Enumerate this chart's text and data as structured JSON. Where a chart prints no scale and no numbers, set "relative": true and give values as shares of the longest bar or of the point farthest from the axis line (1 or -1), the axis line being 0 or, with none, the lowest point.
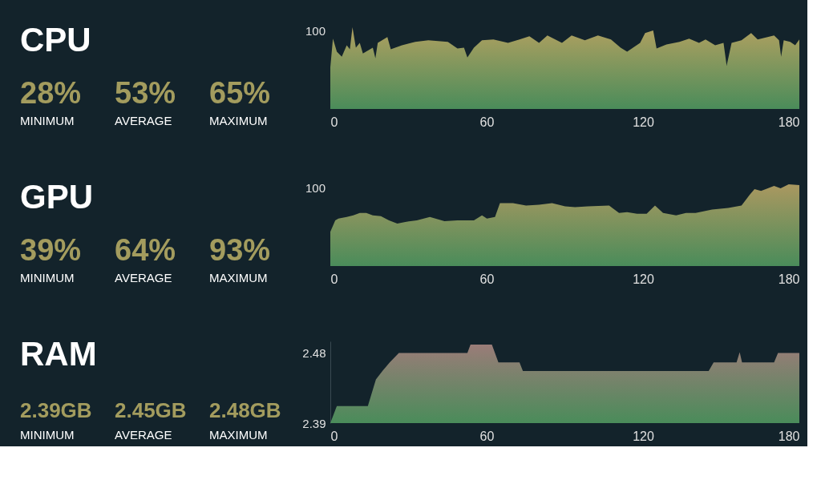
{
  "chart_data": [
    {
      "type": "area",
      "relative": true,
      "annotations": [
        "CPU",
        "28%",
        "MINIMUM",
        "53%",
        "AVERAGE",
        "65%",
        "MAXIMUM",
        "100"
      ],
      "x": [
        0,
        1.0,
        2.5,
        4.4,
        6.3,
        7.5,
        8.5,
        9.8,
        11.3,
        12.5,
        16.3,
        17.3,
        18.2,
        21.9,
        23.2,
        27.5,
        32.6,
        37.6,
        45.1,
        48.8,
        51.3,
        52.6,
        55.1,
        58.2,
        62.6,
        68.2,
        72.6,
        76.4,
        80.1,
        83.3,
        88.9,
        92.6,
        97.7,
        102.7,
        107.7,
        111.4,
        113.9,
        118.9,
        120.8,
        123.9,
        125.2,
        129.0,
        134.0,
        137.7,
        141.5,
        144.0,
        147.7,
        150.9,
        152.1,
        154.0,
        157.8,
        161.5,
        164.0,
        167.8,
        170.3,
        172.2,
        173.0,
        174.0,
        176.5,
        178.4,
        180
      ],
      "series": [
        {
          "color": "#b0a060",
          "values": [
            0.51,
            0.86,
            0.7,
            0.64,
            0.78,
            0.73,
            1,
            0.75,
            0.81,
            0.68,
            0.75,
            0.62,
            0.81,
            0.88,
            0.73,
            0.78,
            0.82,
            0.84,
            0.82,
            0.74,
            0.75,
            0.63,
            0.75,
            0.84,
            0.85,
            0.81,
            0.85,
            0.89,
            0.81,
            0.9,
            0.81,
            0.9,
            0.84,
            0.9,
            0.85,
            0.75,
            0.7,
            0.81,
            0.93,
            0.96,
            0.74,
            0.79,
            0.82,
            0.86,
            0.81,
            0.85,
            0.78,
            0.81,
            0.53,
            0.81,
            0.84,
            0.93,
            0.85,
            0.88,
            0.9,
            0.84,
            0.64,
            0.84,
            0.82,
            0.78,
            0.85
          ]
        }
      ],
      "xlim": [
        0,
        180
      ],
      "xticks": [
        0,
        60,
        120,
        180
      ],
      "grid": false
    },
    {
      "type": "area",
      "relative": true,
      "annotations": [
        "GPU",
        "39%",
        "MINIMUM",
        "64%",
        "AVERAGE",
        "93%",
        "MAXIMUM",
        "100"
      ],
      "x": [
        0,
        1.9,
        3.1,
        6.3,
        8.8,
        11.3,
        13.8,
        16.3,
        19.4,
        22.5,
        25.7,
        28.8,
        33.2,
        38.2,
        43.8,
        48.8,
        55.1,
        58.2,
        60.1,
        63.2,
        65.1,
        70.1,
        75.1,
        80.1,
        85.1,
        90.1,
        93.9,
        98.9,
        107.0,
        110.8,
        113.9,
        117.7,
        121.4,
        124.6,
        127.7,
        132.7,
        136.5,
        140.2,
        146.5,
        152.7,
        157.8,
        160.9,
        162.8,
        165.3,
        170.3,
        172.8,
        175.9,
        180
      ],
      "series": [
        {
          "color": "#aa9860",
          "values": [
            0.42,
            0.56,
            0.58,
            0.6,
            0.62,
            0.65,
            0.65,
            0.62,
            0.61,
            0.56,
            0.52,
            0.54,
            0.56,
            0.6,
            0.55,
            0.56,
            0.56,
            0.62,
            0.58,
            0.6,
            0.77,
            0.77,
            0.74,
            0.75,
            0.77,
            0.73,
            0.72,
            0.73,
            0.74,
            0.65,
            0.66,
            0.64,
            0.64,
            0.74,
            0.65,
            0.62,
            0.65,
            0.65,
            0.69,
            0.71,
            0.74,
            0.87,
            0.94,
            0.92,
            0.98,
            0.95,
            1,
            0.99
          ]
        }
      ],
      "xlim": [
        0,
        180
      ],
      "xticks": [
        0,
        60,
        120,
        180
      ],
      "grid": false
    },
    {
      "type": "area",
      "annotations": [
        "RAM",
        "2.39GB",
        "MINIMUM",
        "2.45GB",
        "AVERAGE",
        "2.48GB",
        "MAXIMUM"
      ],
      "x": [
        0,
        2.5,
        14.4,
        17.5,
        20,
        22.8,
        26.3,
        52.6,
        53.8,
        62,
        64.5,
        72.6,
        73.9,
        145.2,
        147.1,
        155.9,
        157.1,
        158,
        170.3,
        171.8,
        180
      ],
      "series": [
        {
          "color": "#9a7c78",
          "values": [
            2.39,
            2.412,
            2.412,
            2.446,
            2.457,
            2.468,
            2.48,
            2.48,
            2.491,
            2.491,
            2.468,
            2.468,
            2.457,
            2.457,
            2.468,
            2.468,
            2.481,
            2.468,
            2.468,
            2.48,
            2.48
          ]
        }
      ],
      "xlim": [
        0,
        180
      ],
      "xticks": [
        0,
        60,
        120,
        180
      ],
      "ylim": [
        2.39,
        2.495
      ],
      "yticks": [
        2.39,
        2.48
      ],
      "grid": false
    }
  ]
}
